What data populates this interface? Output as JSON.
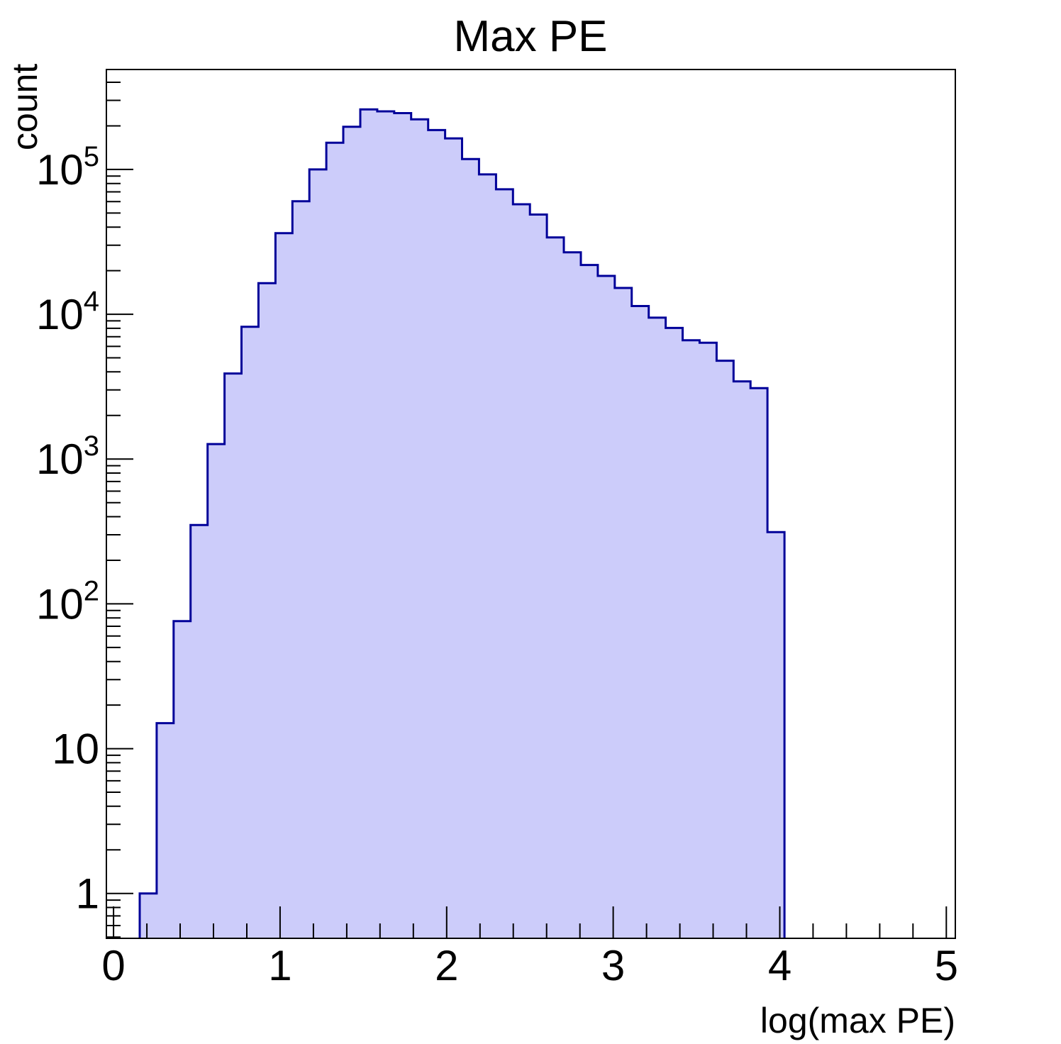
{
  "chart_data": {
    "type": "histogram",
    "title": "Max PE",
    "xlabel": "log(max PE)",
    "ylabel": "count",
    "grid": false,
    "legend": null,
    "x_axis": {
      "min": -0.043,
      "max": 5.054,
      "major_ticks": [
        0,
        1,
        2,
        3,
        4,
        5
      ],
      "tick_labels": [
        "0",
        "1",
        "2",
        "3",
        "4",
        "5"
      ],
      "minor_tick_step": 0.2
    },
    "y_axis": {
      "scale": "log",
      "min": 0.49,
      "max": 490000,
      "major_ticks": [
        1,
        10,
        100,
        1000,
        10000,
        100000
      ],
      "tick_labels": [
        "1",
        "10",
        "10^2",
        "10^3",
        "10^4",
        "10^5"
      ]
    },
    "series": [
      {
        "name": "max-pe-histogram",
        "fill_color": "#ccccfa",
        "line_color": "#000099",
        "bin_start": 0.157,
        "bin_end": 4.028,
        "bin_width": 0.102,
        "counts": [
          1,
          15,
          76,
          350,
          1270,
          3900,
          8200,
          16400,
          36300,
          60300,
          100000,
          153000,
          197000,
          260000,
          252000,
          245000,
          222000,
          187000,
          164000,
          118000,
          92400,
          72900,
          57500,
          48800,
          33900,
          26800,
          21900,
          18400,
          15200,
          11400,
          9470,
          8040,
          6620,
          6350,
          4775,
          3435,
          3090,
          313
        ]
      }
    ]
  }
}
